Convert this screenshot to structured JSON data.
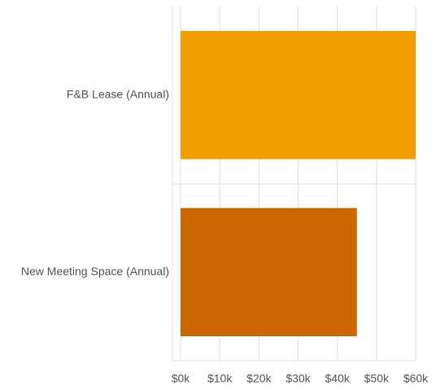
{
  "chart_data": {
    "type": "hbar",
    "categories": [
      "F&B Lease (Annual)",
      "New Meeting Space (Annual)"
    ],
    "values": [
      60000,
      45000
    ],
    "colors": [
      "#f09e00",
      "#cc6600"
    ],
    "xlim": [
      0,
      60000
    ],
    "xticks": [
      {
        "value": 0,
        "label": "$0k"
      },
      {
        "value": 10000,
        "label": "$10k"
      },
      {
        "value": 20000,
        "label": "$20k"
      },
      {
        "value": 30000,
        "label": "$30k"
      },
      {
        "value": 40000,
        "label": "$40k"
      },
      {
        "value": 50000,
        "label": "$50k"
      },
      {
        "value": 60000,
        "label": "$60k"
      }
    ],
    "grid": true
  }
}
